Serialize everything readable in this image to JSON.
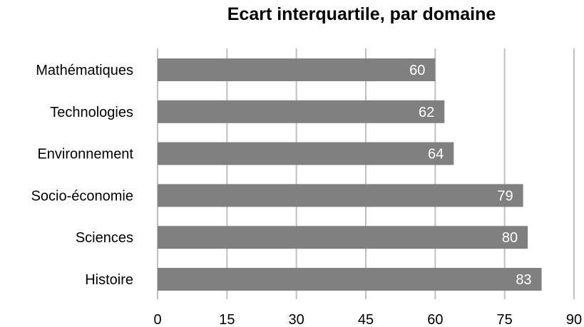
{
  "chart_data": {
    "type": "bar",
    "orientation": "horizontal",
    "title": "Ecart interquartile, par domaine",
    "categories": [
      "Mathématiques",
      "Technologies",
      "Environnement",
      "Socio-économie",
      "Sciences",
      "Histoire"
    ],
    "values": [
      60,
      62,
      64,
      79,
      80,
      83
    ],
    "xlim": [
      0,
      90
    ],
    "xticks": [
      "0",
      "15",
      "30",
      "45",
      "60",
      "75",
      "90"
    ],
    "xlabel": "",
    "ylabel": "",
    "grid": "vertical",
    "data_labels": true,
    "colors": {
      "bar": "#808080",
      "grid": "#c0c0c0",
      "label": "#ffffff"
    }
  }
}
